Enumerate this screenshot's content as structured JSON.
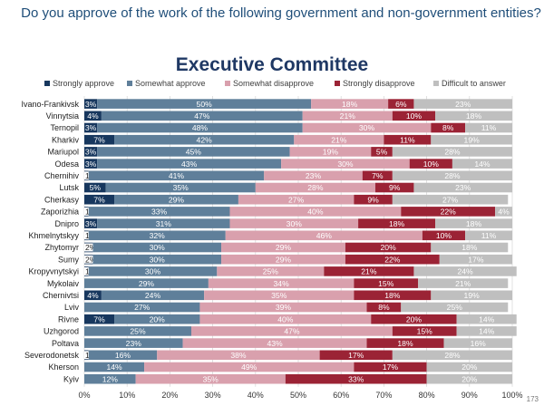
{
  "header": {
    "question": "Do you approve of the work of the following government and non-government entities?",
    "title": "Executive Committee",
    "page_number": "173"
  },
  "chart_data": {
    "type": "bar",
    "orientation": "horizontal",
    "stacked": true,
    "title": "Executive Committee",
    "categories": [
      "Ivano-Frankivsk",
      "Vinnytsia",
      "Ternopil",
      "Kharkiv",
      "Mariupol",
      "Odesa",
      "Chernihiv",
      "Lutsk",
      "Cherkasy",
      "Zaporizhia",
      "Dnipro",
      "Khmelnytskyy",
      "Zhytomyr",
      "Sumy",
      "Kropyvnytskyi",
      "Mykolaiv",
      "Chernivtsi",
      "Lviv",
      "Rivne",
      "Uzhgorod",
      "Poltava",
      "Severodonetsk",
      "Kherson",
      "Kyiv"
    ],
    "series": [
      {
        "name": "Strongly approve",
        "color": "#17375e",
        "values": [
          3,
          4,
          3,
          7,
          3,
          3,
          1,
          5,
          7,
          1,
          3,
          1,
          2,
          2,
          1,
          0,
          4,
          0,
          7,
          0,
          0,
          1,
          0,
          0
        ]
      },
      {
        "name": "Somewhat approve",
        "color": "#5f7f9a",
        "values": [
          50,
          47,
          48,
          42,
          45,
          43,
          41,
          35,
          29,
          33,
          31,
          32,
          30,
          30,
          30,
          29,
          24,
          27,
          20,
          25,
          23,
          16,
          14,
          12
        ]
      },
      {
        "name": "Somewhat disapprove",
        "color": "#d9a0ad",
        "values": [
          18,
          21,
          30,
          21,
          19,
          30,
          23,
          28,
          27,
          40,
          30,
          46,
          29,
          29,
          25,
          34,
          35,
          39,
          40,
          47,
          43,
          38,
          49,
          35
        ]
      },
      {
        "name": "Strongly disapprove",
        "color": "#9b2335",
        "values": [
          6,
          10,
          8,
          11,
          5,
          10,
          7,
          9,
          9,
          22,
          18,
          10,
          20,
          22,
          21,
          15,
          18,
          8,
          20,
          15,
          18,
          17,
          17,
          33
        ]
      },
      {
        "name": "Difficult to answer",
        "color": "#bfbfbf",
        "values": [
          23,
          18,
          11,
          19,
          28,
          14,
          28,
          23,
          27,
          4,
          18,
          11,
          18,
          17,
          24,
          21,
          19,
          25,
          14,
          14,
          16,
          28,
          20,
          20
        ]
      }
    ],
    "xlim": [
      0,
      100
    ],
    "x_ticks": [
      "0%",
      "10%",
      "20%",
      "30%",
      "40%",
      "50%",
      "60%",
      "70%",
      "80%",
      "90%",
      "100%"
    ],
    "value_suffix": "%",
    "legend_position": "top",
    "grid": true
  }
}
